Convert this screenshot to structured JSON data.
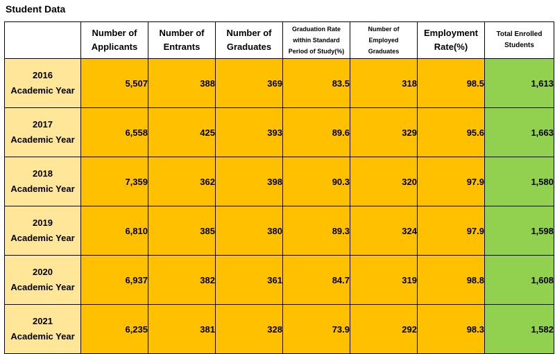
{
  "title": "Student Data",
  "chart_data": {
    "type": "table",
    "columns": [
      "",
      "Number of\nApplicants",
      "Number of\nEntrants",
      "Number of\nGraduates",
      "Graduation Rate\nwithin Standard\nPeriod of Study(%)",
      "Number of\nEmployed\nGraduates",
      "Employment\nRate(%)",
      "Total Enrolled\nStudents"
    ],
    "rows": [
      {
        "year": "2016\nAcademic Year",
        "values": [
          "5,507",
          "388",
          "369",
          "83.5",
          "318",
          "98.5",
          "1,613"
        ]
      },
      {
        "year": "2017\nAcademic Year",
        "values": [
          "6,558",
          "425",
          "393",
          "89.6",
          "329",
          "95.6",
          "1,663"
        ]
      },
      {
        "year": "2018\nAcademic Year",
        "values": [
          "7,359",
          "362",
          "398",
          "90.3",
          "320",
          "97.9",
          "1,580"
        ]
      },
      {
        "year": "2019\nAcademic Year",
        "values": [
          "6,810",
          "385",
          "380",
          "89.3",
          "324",
          "97.9",
          "1,598"
        ]
      },
      {
        "year": "2020\nAcademic Year",
        "values": [
          "6,937",
          "382",
          "361",
          "84.7",
          "319",
          "98.8",
          "1,608"
        ]
      },
      {
        "year": "2021\nAcademic Year",
        "values": [
          "6,235",
          "381",
          "328",
          "73.9",
          "292",
          "98.3",
          "1,582"
        ]
      }
    ],
    "colors": {
      "year_cell": "#ffe699",
      "value_cell": "#ffc000",
      "total_cell": "#92d050",
      "header_cell": "#ffffff"
    }
  }
}
